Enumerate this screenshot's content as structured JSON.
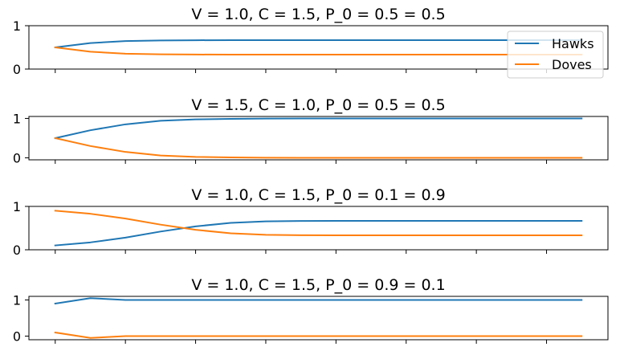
{
  "colors": {
    "hawks": "#1f77b4",
    "doves": "#ff7f0e"
  },
  "legend": {
    "placement": "upper-right of first panel",
    "entries": [
      "Hawks",
      "Doves"
    ]
  },
  "chart_data": [
    {
      "type": "line",
      "title": "V = 1.0, C = 1.5, P_0 = 0.5 = 0.5",
      "x": [
        0,
        1,
        2,
        3,
        4,
        5,
        6,
        7,
        8,
        9,
        10,
        11,
        12,
        13,
        14,
        15
      ],
      "series": [
        {
          "name": "Hawks",
          "values": [
            0.5,
            0.6,
            0.645,
            0.66,
            0.665,
            0.667,
            0.667,
            0.667,
            0.667,
            0.667,
            0.667,
            0.667,
            0.667,
            0.667,
            0.667,
            0.667
          ]
        },
        {
          "name": "Doves",
          "values": [
            0.5,
            0.4,
            0.355,
            0.34,
            0.335,
            0.333,
            0.333,
            0.333,
            0.333,
            0.333,
            0.333,
            0.333,
            0.333,
            0.333,
            0.333,
            0.333
          ]
        }
      ],
      "ylim": [
        0,
        1
      ],
      "yticks": [
        "0",
        "1"
      ],
      "xlim": [
        -0.75,
        15.75
      ],
      "xticks": [
        0,
        2,
        4,
        6,
        8,
        10,
        12,
        14
      ],
      "xticklabels_visible": false
    },
    {
      "type": "line",
      "title": "V = 1.5, C = 1.0, P_0 = 0.5 = 0.5",
      "x": [
        0,
        1,
        2,
        3,
        4,
        5,
        6,
        7,
        8,
        9,
        10,
        11,
        12,
        13,
        14,
        15
      ],
      "series": [
        {
          "name": "Hawks",
          "values": [
            0.5,
            0.7,
            0.85,
            0.94,
            0.975,
            0.99,
            0.996,
            0.998,
            1.0,
            1.0,
            1.0,
            1.0,
            1.0,
            1.0,
            1.0,
            1.0
          ]
        },
        {
          "name": "Doves",
          "values": [
            0.5,
            0.3,
            0.15,
            0.06,
            0.025,
            0.01,
            0.004,
            0.002,
            0.0,
            0.0,
            0.0,
            0.0,
            0.0,
            0.0,
            0.0,
            0.0
          ]
        }
      ],
      "ylim": [
        -0.05,
        1.05
      ],
      "yticks": [
        "0",
        "1"
      ],
      "xlim": [
        -0.75,
        15.75
      ],
      "xticks": [
        0,
        2,
        4,
        6,
        8,
        10,
        12,
        14
      ],
      "xticklabels_visible": false
    },
    {
      "type": "line",
      "title": "V = 1.0, C = 1.5, P_0 = 0.1 = 0.9",
      "x": [
        0,
        1,
        2,
        3,
        4,
        5,
        6,
        7,
        8,
        9,
        10,
        11,
        12,
        13,
        14,
        15
      ],
      "series": [
        {
          "name": "Hawks",
          "values": [
            0.1,
            0.17,
            0.28,
            0.42,
            0.54,
            0.62,
            0.655,
            0.664,
            0.666,
            0.667,
            0.667,
            0.667,
            0.667,
            0.667,
            0.667,
            0.667
          ]
        },
        {
          "name": "Doves",
          "values": [
            0.9,
            0.83,
            0.72,
            0.58,
            0.46,
            0.38,
            0.345,
            0.336,
            0.334,
            0.333,
            0.333,
            0.333,
            0.333,
            0.333,
            0.333,
            0.333
          ]
        }
      ],
      "ylim": [
        0,
        1
      ],
      "yticks": [
        "0",
        "1"
      ],
      "xlim": [
        -0.75,
        15.75
      ],
      "xticks": [
        0,
        2,
        4,
        6,
        8,
        10,
        12,
        14
      ],
      "xticklabels_visible": false
    },
    {
      "type": "line",
      "title": "V = 1.0, C = 1.5, P_0 = 0.9 = 0.1",
      "x": [
        0,
        1,
        2,
        3,
        4,
        5,
        6,
        7,
        8,
        9,
        10,
        11,
        12,
        13,
        14,
        15
      ],
      "series": [
        {
          "name": "Hawks",
          "values": [
            0.9,
            1.05,
            1.0,
            1.0,
            1.0,
            1.0,
            1.0,
            1.0,
            1.0,
            1.0,
            1.0,
            1.0,
            1.0,
            1.0,
            1.0,
            1.0
          ]
        },
        {
          "name": "Doves",
          "values": [
            0.1,
            -0.05,
            0.0,
            0.0,
            0.0,
            0.0,
            0.0,
            0.0,
            0.0,
            0.0,
            0.0,
            0.0,
            0.0,
            0.0,
            0.0,
            0.0
          ]
        }
      ],
      "ylim": [
        -0.1,
        1.1
      ],
      "yticks": [
        "0",
        "1"
      ],
      "xlim": [
        -0.75,
        15.75
      ],
      "xticks": [
        0,
        2,
        4,
        6,
        8,
        10,
        12,
        14
      ],
      "xticklabels_visible": false
    }
  ]
}
